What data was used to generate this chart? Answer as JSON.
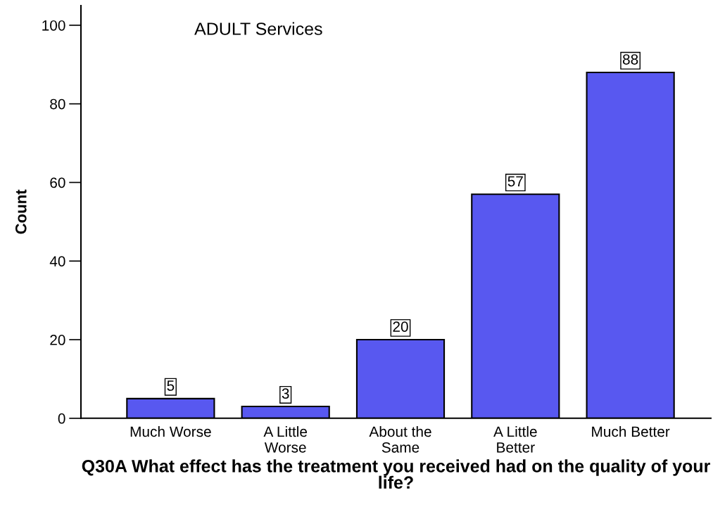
{
  "chart_data": {
    "type": "bar",
    "title": "ADULT Services",
    "categories": [
      "Much Worse",
      "A Little\nWorse",
      "About the\nSame",
      "A Little\nBetter",
      "Much Better"
    ],
    "values": [
      5,
      3,
      20,
      57,
      88
    ],
    "color": "#5858f0",
    "xlabel": "Q30A What effect has the treatment you received had on the quality of your life?",
    "ylabel": "Count",
    "ylim": [
      0,
      105
    ],
    "yticks": [
      0,
      20,
      40,
      60,
      80,
      100
    ],
    "data_labels": true,
    "grid": false
  }
}
